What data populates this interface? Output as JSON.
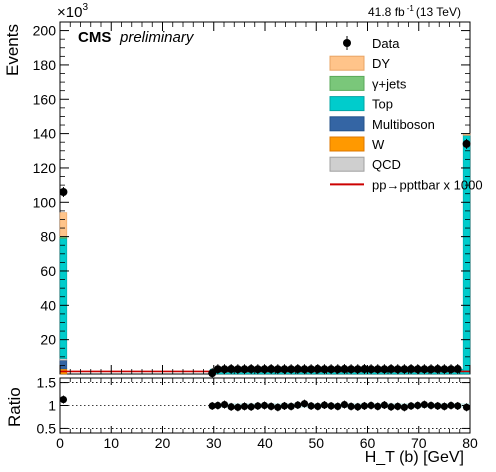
{
  "chart_data": {
    "type": "bar",
    "header": {
      "lumi_prefix": "41.8 fb",
      "lumi_exp": "-1",
      "lumi_suffix": "(13 TeV)",
      "cms": "CMS",
      "preliminary": "preliminary",
      "y_multiplier": "×10",
      "y_multiplier_exp": "3"
    },
    "xlabel": "H_T (b) [GeV]",
    "ylabel": "Events",
    "ratio_ylabel": "Ratio",
    "xlim": [
      0,
      80
    ],
    "ylim": [
      0,
      205
    ],
    "ratio_ylim": [
      0.4,
      1.6
    ],
    "x_ticks": [
      0,
      10,
      20,
      30,
      40,
      50,
      60,
      70,
      80
    ],
    "y_ticks": [
      20,
      40,
      60,
      80,
      100,
      120,
      140,
      160,
      180,
      200
    ],
    "ratio_ticks": [
      0.5,
      1,
      1.5
    ],
    "ratio_tick_labels": [
      "0.5",
      "1",
      "1.5"
    ],
    "legend": [
      {
        "label": "Data",
        "kind": "data",
        "color": "#000000"
      },
      {
        "label": "DY",
        "kind": "fill",
        "color": "#ffc48a",
        "edge": "#e8a464"
      },
      {
        "label": "γ+jets",
        "kind": "fill",
        "color": "#7ac77a",
        "edge": "#5aa95a"
      },
      {
        "label": "Top",
        "kind": "fill",
        "color": "#00cccc",
        "edge": "#00a6a6"
      },
      {
        "label": "Multiboson",
        "kind": "fill",
        "color": "#3465a4",
        "edge": "#24528a"
      },
      {
        "label": "W",
        "kind": "fill",
        "color": "#ff9900",
        "edge": "#dd7700"
      },
      {
        "label": "QCD",
        "kind": "fill",
        "color": "#cfcfcf",
        "edge": "#a0a0a0"
      },
      {
        "label": "pp→ppttbar x 1000",
        "kind": "line",
        "color": "#cc0000"
      }
    ],
    "stack": [
      {
        "x0": 0,
        "x1": 1.33,
        "values": {
          "W": 3,
          "Multiboson": 5,
          "QCD": 1,
          "Top": 70,
          "γ+jets": 1,
          "DY": 14
        }
      },
      {
        "x0": 78.67,
        "x1": 80,
        "values": {
          "W": 0,
          "Multiboson": 0,
          "QCD": 0,
          "Top": 139,
          "γ+jets": 0,
          "DY": 1
        }
      }
    ],
    "mid_band": {
      "x0": 29.3,
      "x1": 78.67,
      "level": 2.8
    },
    "data_points": [
      {
        "x": 0.67,
        "y": 106
      },
      {
        "x": 29.7,
        "y": 0.5
      },
      {
        "x": 30.8,
        "y": 2.8
      },
      {
        "x": 32.1,
        "y": 2.8
      },
      {
        "x": 33.4,
        "y": 2.9
      },
      {
        "x": 34.7,
        "y": 2.8
      },
      {
        "x": 36.0,
        "y": 2.8
      },
      {
        "x": 37.3,
        "y": 2.9
      },
      {
        "x": 38.6,
        "y": 2.8
      },
      {
        "x": 39.9,
        "y": 2.8
      },
      {
        "x": 41.2,
        "y": 2.9
      },
      {
        "x": 42.5,
        "y": 2.8
      },
      {
        "x": 43.8,
        "y": 2.8
      },
      {
        "x": 45.1,
        "y": 2.8
      },
      {
        "x": 46.4,
        "y": 2.9
      },
      {
        "x": 47.7,
        "y": 2.8
      },
      {
        "x": 49.0,
        "y": 2.8
      },
      {
        "x": 50.3,
        "y": 2.9
      },
      {
        "x": 51.6,
        "y": 2.8
      },
      {
        "x": 52.9,
        "y": 2.8
      },
      {
        "x": 54.2,
        "y": 2.8
      },
      {
        "x": 55.5,
        "y": 2.9
      },
      {
        "x": 56.8,
        "y": 2.8
      },
      {
        "x": 58.1,
        "y": 2.8
      },
      {
        "x": 59.4,
        "y": 2.9
      },
      {
        "x": 60.7,
        "y": 2.8
      },
      {
        "x": 62.0,
        "y": 2.8
      },
      {
        "x": 63.3,
        "y": 2.8
      },
      {
        "x": 64.6,
        "y": 2.9
      },
      {
        "x": 65.9,
        "y": 2.8
      },
      {
        "x": 67.2,
        "y": 2.8
      },
      {
        "x": 68.5,
        "y": 2.9
      },
      {
        "x": 69.8,
        "y": 2.8
      },
      {
        "x": 71.1,
        "y": 2.8
      },
      {
        "x": 72.4,
        "y": 2.8
      },
      {
        "x": 73.7,
        "y": 2.9
      },
      {
        "x": 75.0,
        "y": 2.8
      },
      {
        "x": 76.3,
        "y": 2.8
      },
      {
        "x": 77.6,
        "y": 2.9
      },
      {
        "x": 79.33,
        "y": 134
      }
    ],
    "ratio_points": [
      {
        "x": 0.67,
        "y": 1.13
      },
      {
        "x": 29.7,
        "y": 0.99
      },
      {
        "x": 30.8,
        "y": 1.0
      },
      {
        "x": 32.1,
        "y": 1.02
      },
      {
        "x": 33.4,
        "y": 0.97
      },
      {
        "x": 34.7,
        "y": 0.96
      },
      {
        "x": 36.0,
        "y": 0.98
      },
      {
        "x": 37.3,
        "y": 0.97
      },
      {
        "x": 38.6,
        "y": 0.99
      },
      {
        "x": 39.9,
        "y": 1.0
      },
      {
        "x": 41.2,
        "y": 0.98
      },
      {
        "x": 42.5,
        "y": 0.96
      },
      {
        "x": 43.8,
        "y": 0.99
      },
      {
        "x": 45.1,
        "y": 0.98
      },
      {
        "x": 46.4,
        "y": 1.01
      },
      {
        "x": 47.7,
        "y": 1.04
      },
      {
        "x": 49.0,
        "y": 0.99
      },
      {
        "x": 50.3,
        "y": 0.98
      },
      {
        "x": 51.6,
        "y": 1.01
      },
      {
        "x": 52.9,
        "y": 0.99
      },
      {
        "x": 54.2,
        "y": 0.98
      },
      {
        "x": 55.5,
        "y": 1.02
      },
      {
        "x": 56.8,
        "y": 0.98
      },
      {
        "x": 58.1,
        "y": 0.97
      },
      {
        "x": 59.4,
        "y": 0.99
      },
      {
        "x": 60.7,
        "y": 1.0
      },
      {
        "x": 62.0,
        "y": 0.98
      },
      {
        "x": 63.3,
        "y": 1.01
      },
      {
        "x": 64.6,
        "y": 0.97
      },
      {
        "x": 65.9,
        "y": 0.98
      },
      {
        "x": 67.2,
        "y": 0.96
      },
      {
        "x": 68.5,
        "y": 0.99
      },
      {
        "x": 69.8,
        "y": 1.0
      },
      {
        "x": 71.1,
        "y": 1.02
      },
      {
        "x": 72.4,
        "y": 1.0
      },
      {
        "x": 73.7,
        "y": 0.99
      },
      {
        "x": 75.0,
        "y": 0.98
      },
      {
        "x": 76.3,
        "y": 1.0
      },
      {
        "x": 77.6,
        "y": 0.99
      },
      {
        "x": 79.33,
        "y": 0.96
      }
    ]
  }
}
